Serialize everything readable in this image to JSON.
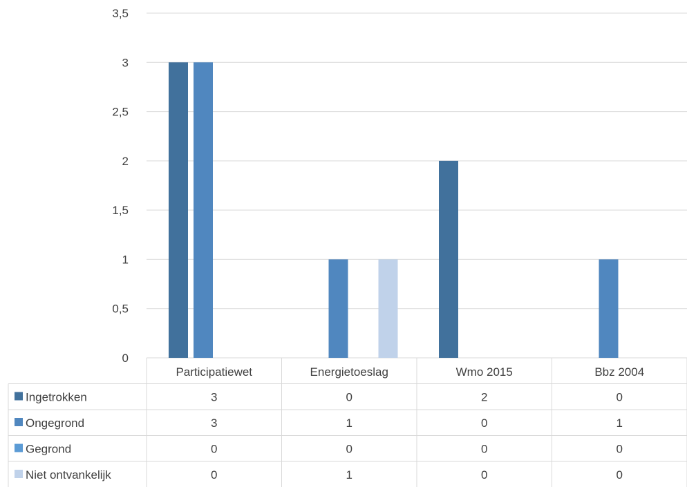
{
  "chart_data": {
    "type": "bar",
    "categories": [
      "Participatiewet",
      "Energietoeslag",
      "Wmo 2015",
      "Bbz 2004"
    ],
    "series": [
      {
        "name": "Ingetrokken",
        "values": [
          3,
          0,
          2,
          0
        ],
        "color": "#41719c"
      },
      {
        "name": "Ongegrond",
        "values": [
          3,
          1,
          0,
          1
        ],
        "color": "#5087bf"
      },
      {
        "name": "Gegrond",
        "values": [
          0,
          0,
          0,
          0
        ],
        "color": "#5b9bd5"
      },
      {
        "name": "Niet ontvankelijk",
        "values": [
          0,
          1,
          0,
          0
        ],
        "color": "#c0d2ea"
      }
    ],
    "bar_colors_in_plot": [
      "#dbe3f1",
      "#5087bf",
      "#c0d2ea",
      "#41719c"
    ],
    "y_ticks": [
      "0",
      "0,5",
      "1",
      "1,5",
      "2",
      "2,5",
      "3",
      "3,5"
    ],
    "y_tick_values": [
      0,
      0.5,
      1,
      1.5,
      2,
      2.5,
      3,
      3.5
    ],
    "ylim": [
      0,
      3.5
    ],
    "grid": true,
    "legend": "data-table",
    "table": {
      "rows": [
        {
          "label": "Ingetrokken",
          "cells": [
            "3",
            "0",
            "2",
            "0"
          ]
        },
        {
          "label": "Ongegrond",
          "cells": [
            "3",
            "1",
            "0",
            "1"
          ]
        },
        {
          "label": "Gegrond",
          "cells": [
            "0",
            "0",
            "0",
            "0"
          ]
        },
        {
          "label": "Niet ontvankelijk",
          "cells": [
            "0",
            "1",
            "0",
            "0"
          ]
        }
      ]
    }
  }
}
